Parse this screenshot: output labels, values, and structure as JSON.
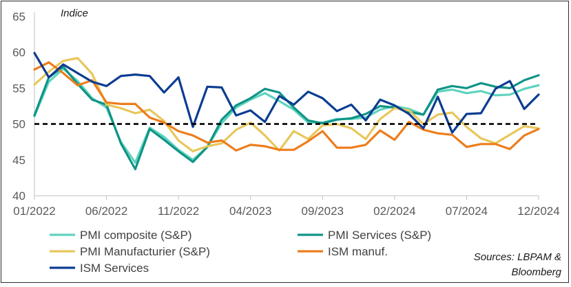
{
  "chart_data": {
    "type": "line",
    "ylabel": "Indice",
    "ylim": [
      40,
      65
    ],
    "yticks": [
      "40",
      "45",
      "50",
      "55",
      "60",
      "65"
    ],
    "x": [
      "2022-01",
      "2022-02",
      "2022-03",
      "2022-04",
      "2022-05",
      "2022-06",
      "2022-07",
      "2022-08",
      "2022-09",
      "2022-10",
      "2022-11",
      "2022-12",
      "2023-01",
      "2023-02",
      "2023-03",
      "2023-04",
      "2023-05",
      "2023-06",
      "2023-07",
      "2023-08",
      "2023-09",
      "2023-10",
      "2023-11",
      "2023-12",
      "2024-01",
      "2024-02",
      "2024-03",
      "2024-04",
      "2024-05",
      "2024-06",
      "2024-07",
      "2024-08",
      "2024-09",
      "2024-10",
      "2024-11",
      "2024-12"
    ],
    "xtick_labels": [
      {
        "label": "01/2022",
        "index": 0
      },
      {
        "label": "06/2022",
        "index": 5
      },
      {
        "label": "11/2022",
        "index": 10
      },
      {
        "label": "04/2023",
        "index": 15
      },
      {
        "label": "09/2023",
        "index": 20
      },
      {
        "label": "02/2024",
        "index": 25
      },
      {
        "label": "07/2024",
        "index": 30
      },
      {
        "label": "12/2024",
        "index": 35
      }
    ],
    "reference_line": {
      "value": 50,
      "style": "dashed",
      "color": "#000000"
    },
    "series": [
      {
        "name": "PMI composite (S&P)",
        "color": "#5ed3be",
        "values": [
          51.1,
          55.9,
          57.7,
          56.0,
          53.6,
          52.3,
          47.5,
          44.6,
          49.5,
          48.2,
          46.4,
          45.0,
          46.8,
          50.1,
          52.3,
          53.4,
          54.3,
          53.2,
          52.0,
          50.2,
          50.2,
          50.7,
          50.7,
          50.9,
          52.0,
          52.5,
          52.1,
          51.3,
          54.5,
          54.8,
          54.3,
          54.6,
          54.0,
          54.1,
          54.9,
          55.4
        ]
      },
      {
        "name": "PMI Services (S&P)",
        "color": "#0f9487",
        "values": [
          51.2,
          56.5,
          58.0,
          55.6,
          53.4,
          52.7,
          47.3,
          43.7,
          49.3,
          47.8,
          46.2,
          44.7,
          46.8,
          50.6,
          52.6,
          53.6,
          54.9,
          54.4,
          52.3,
          50.5,
          50.1,
          50.6,
          50.8,
          51.4,
          52.5,
          52.3,
          51.7,
          51.3,
          54.8,
          55.3,
          55.0,
          55.7,
          55.2,
          55.0,
          56.1,
          56.8
        ]
      },
      {
        "name": "PMI Manufacturier (S&P)",
        "color": "#e8c65a",
        "values": [
          55.5,
          57.3,
          58.8,
          59.2,
          57.0,
          52.7,
          52.2,
          51.5,
          52.0,
          50.4,
          47.7,
          46.2,
          46.9,
          47.3,
          49.2,
          50.2,
          48.4,
          46.3,
          49.0,
          47.9,
          49.8,
          50.0,
          49.4,
          47.9,
          50.7,
          52.2,
          51.9,
          50.0,
          51.3,
          51.6,
          49.6,
          48.0,
          47.3,
          48.5,
          49.7,
          49.4
        ]
      },
      {
        "name": "ISM manuf.",
        "color": "#ed7d1c",
        "values": [
          57.6,
          58.6,
          57.1,
          55.4,
          56.1,
          53.0,
          52.8,
          52.8,
          50.9,
          50.2,
          49.0,
          48.4,
          47.4,
          47.7,
          46.3,
          47.1,
          46.9,
          46.4,
          46.4,
          47.6,
          49.0,
          46.7,
          46.7,
          47.1,
          49.1,
          47.8,
          50.3,
          49.2,
          48.7,
          48.5,
          46.8,
          47.2,
          47.2,
          46.5,
          48.4,
          49.3
        ]
      },
      {
        "name": "ISM Services",
        "color": "#0b3d91",
        "values": [
          59.9,
          56.5,
          58.3,
          57.1,
          55.9,
          55.3,
          56.7,
          56.9,
          56.7,
          54.4,
          56.5,
          49.6,
          55.2,
          55.1,
          51.2,
          51.9,
          50.3,
          53.9,
          52.7,
          54.5,
          53.6,
          51.8,
          52.7,
          50.5,
          53.4,
          52.6,
          51.4,
          49.4,
          53.8,
          48.8,
          51.4,
          51.5,
          54.9,
          56.0,
          52.1,
          54.1
        ]
      }
    ],
    "legend_position": "bottom"
  },
  "annotations": {
    "source_line1": "Sources: LBPAM &",
    "source_line2": "Bloomberg"
  },
  "colors": {
    "axis": "#bfbfbf",
    "tick_text": "#595959"
  }
}
